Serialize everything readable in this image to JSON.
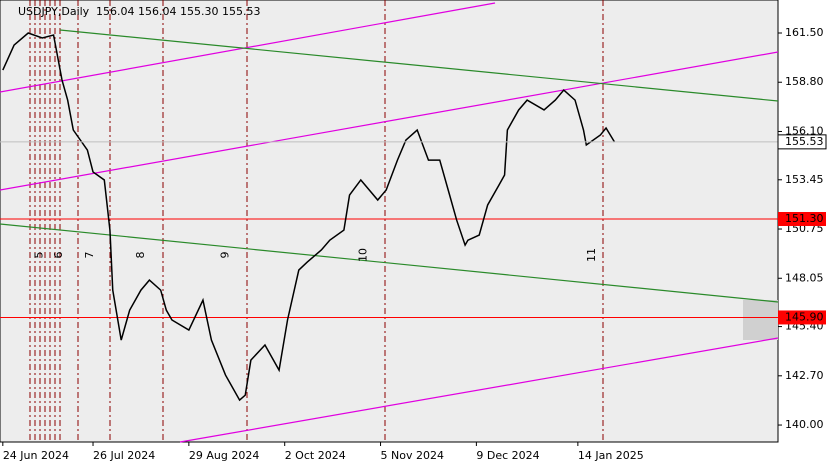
{
  "chart_data": {
    "type": "line",
    "title": "USDJPY,Daily",
    "subtitle": "156.04 156.04 155.30 155.53",
    "x": [
      "2024-06-24",
      "2024-06-28",
      "2024-07-03",
      "2024-07-08",
      "2024-07-12",
      "2024-07-15",
      "2024-07-17",
      "2024-07-19",
      "2024-07-24",
      "2024-07-26",
      "2024-07-30",
      "2024-08-01",
      "2024-08-02",
      "2024-08-05",
      "2024-08-08",
      "2024-08-12",
      "2024-08-15",
      "2024-08-19",
      "2024-08-21",
      "2024-08-23",
      "2024-08-29",
      "2024-09-03",
      "2024-09-06",
      "2024-09-11",
      "2024-09-16",
      "2024-09-18",
      "2024-09-20",
      "2024-09-25",
      "2024-09-30",
      "2024-10-03",
      "2024-10-07",
      "2024-10-10",
      "2024-10-15",
      "2024-10-18",
      "2024-10-23",
      "2024-10-25",
      "2024-10-29",
      "2024-11-01",
      "2024-11-04",
      "2024-11-07",
      "2024-11-11",
      "2024-11-14",
      "2024-11-18",
      "2024-11-22",
      "2024-11-26",
      "2024-11-29",
      "2024-12-02",
      "2024-12-05",
      "2024-12-06",
      "2024-12-10",
      "2024-12-13",
      "2024-12-17",
      "2024-12-19",
      "2024-12-20",
      "2024-12-24",
      "2024-12-27",
      "2025-01-02",
      "2025-01-06",
      "2025-01-09",
      "2025-01-13",
      "2025-01-16",
      "2025-01-17",
      "2025-01-22",
      "2025-01-24",
      "2025-01-27"
    ],
    "series": [
      {
        "name": "USDJPY",
        "color": "#000000",
        "values": [
          159.47,
          160.84,
          161.5,
          161.23,
          161.39,
          158.92,
          157.82,
          156.18,
          155.08,
          153.88,
          153.44,
          150.69,
          147.4,
          144.66,
          146.3,
          147.4,
          147.95,
          147.4,
          146.3,
          145.76,
          145.21,
          146.85,
          144.66,
          142.74,
          141.37,
          141.64,
          143.56,
          144.39,
          143.01,
          145.76,
          148.5,
          148.94,
          149.6,
          150.14,
          150.69,
          152.61,
          153.44,
          152.89,
          152.34,
          152.89,
          154.53,
          155.63,
          156.18,
          154.53,
          154.53,
          152.89,
          151.24,
          149.87,
          150.14,
          150.42,
          152.07,
          153.16,
          153.71,
          156.18,
          157.28,
          157.82,
          157.28,
          157.82,
          158.37,
          157.82,
          156.18,
          155.36,
          155.91,
          156.29,
          155.52
        ]
      }
    ],
    "xlim": [
      "2024-06-23",
      "2025-03-26"
    ],
    "xticks": [
      {
        "value": "2024-06-24",
        "label": "24 Jun 2024"
      },
      {
        "value": "2024-07-26",
        "label": "26 Jul 2024"
      },
      {
        "value": "2024-08-29",
        "label": "29 Aug 2024"
      },
      {
        "value": "2024-10-02",
        "label": "2 Oct 2024"
      },
      {
        "value": "2024-11-05",
        "label": "5 Nov 2024"
      },
      {
        "value": "2024-12-09",
        "label": "9 Dec 2024"
      },
      {
        "value": "2025-01-14",
        "label": "14 Jan 2025"
      }
    ],
    "ylim": [
      139.07,
      163.31
    ],
    "yticks": [
      {
        "value": 161.5,
        "label": "161.50"
      },
      {
        "value": 158.8,
        "label": "158.80"
      },
      {
        "value": 156.1,
        "label": "156.10"
      },
      {
        "value": 153.45,
        "label": "153.45"
      },
      {
        "value": 150.75,
        "label": "150.75"
      },
      {
        "value": 148.05,
        "label": "148.05"
      },
      {
        "value": 145.4,
        "label": "145.40"
      },
      {
        "value": 142.7,
        "label": "142.70"
      },
      {
        "value": 140,
        "label": "140.00"
      }
    ],
    "levels": [
      {
        "value": 151.3,
        "label": "151.30",
        "color": "#ff0000"
      },
      {
        "value": 145.9,
        "label": "145.90",
        "color": "#ff0000"
      }
    ],
    "last_price": {
      "value": 155.53,
      "label": "155.53"
    },
    "annotations": [
      {
        "value": "2024-07-07",
        "label": "5"
      },
      {
        "value": "2024-07-14",
        "label": "6"
      },
      {
        "value": "2024-07-25",
        "label": "7"
      },
      {
        "value": "2024-08-12",
        "label": "8"
      },
      {
        "value": "2024-09-11",
        "label": "9"
      },
      {
        "value": "2024-10-30",
        "label": "10"
      },
      {
        "value": "2025-01-19",
        "label": "11"
      }
    ]
  }
}
